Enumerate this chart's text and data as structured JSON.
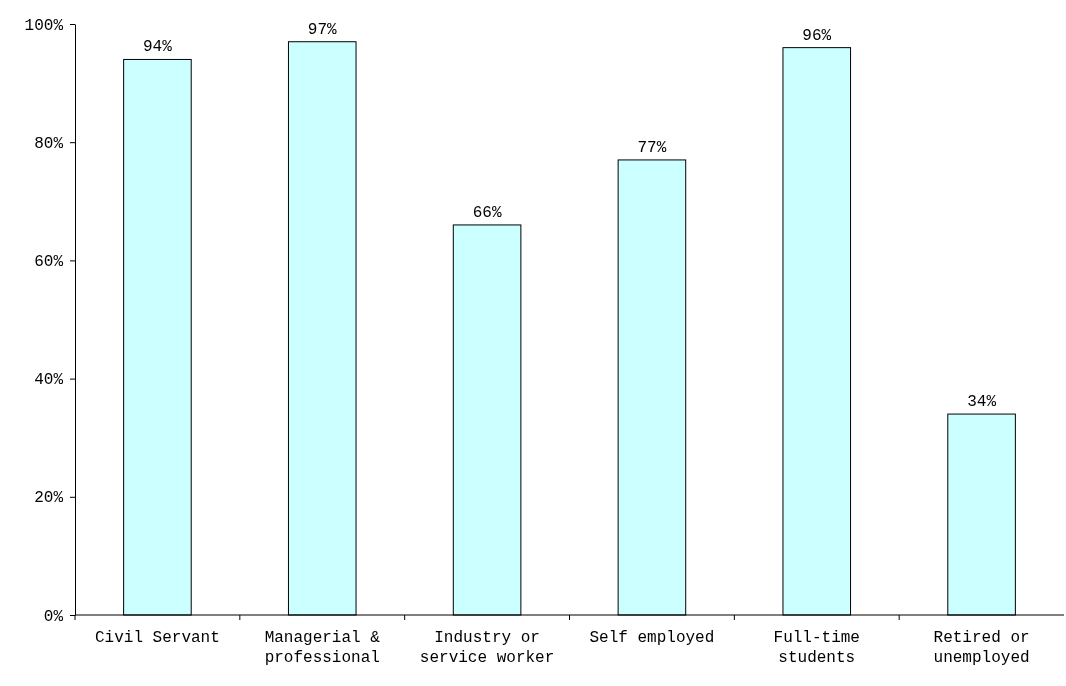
{
  "chart_data": {
    "type": "bar",
    "categories": [
      "Civil Servant",
      "Managerial & professional",
      "Industry or service worker",
      "Self employed",
      "Full-time students",
      "Retired or unemployed"
    ],
    "values": [
      94,
      97,
      66,
      77,
      96,
      34
    ],
    "value_labels": [
      "94%",
      "97%",
      "66%",
      "77%",
      "96%",
      "34%"
    ],
    "color": "#ccffff",
    "ylim": [
      0,
      100
    ],
    "yticks": [
      {
        "value": 0,
        "label": "0%"
      },
      {
        "value": 20,
        "label": "20%"
      },
      {
        "value": 40,
        "label": "40%"
      },
      {
        "value": 60,
        "label": "60%"
      },
      {
        "value": 80,
        "label": "80%"
      },
      {
        "value": 100,
        "label": "100%"
      }
    ],
    "grid": false
  }
}
